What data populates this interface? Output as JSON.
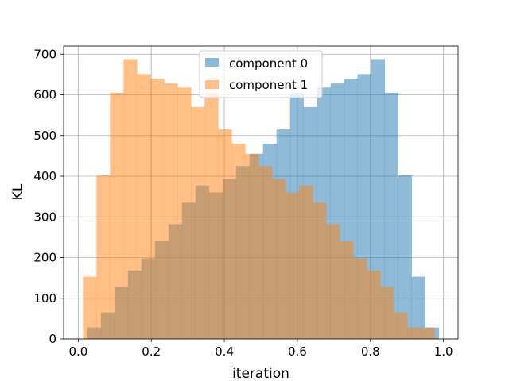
{
  "chart_data": {
    "type": "bar",
    "title": "",
    "xlabel": "iteration",
    "ylabel": "KL",
    "xlim": [
      -0.04,
      1.04
    ],
    "ylim": [
      0,
      720
    ],
    "xticks": [
      0.0,
      0.2,
      0.4,
      0.6,
      0.8,
      1.0
    ],
    "xtick_labels": [
      "0.0",
      "0.2",
      "0.4",
      "0.6",
      "0.8",
      "1.0"
    ],
    "yticks": [
      0,
      100,
      200,
      300,
      400,
      500,
      600,
      700
    ],
    "ytick_labels": [
      "0",
      "100",
      "200",
      "300",
      "400",
      "500",
      "600",
      "700"
    ],
    "grid": true,
    "legend_position": "upper center",
    "series": [
      {
        "name": "component 0",
        "color": "#1f77b4",
        "opacity": 0.5,
        "bins": [
          [
            0.025,
            0.062
          ],
          [
            0.062,
            0.099
          ],
          [
            0.099,
            0.136
          ],
          [
            0.136,
            0.173
          ],
          [
            0.173,
            0.21
          ],
          [
            0.21,
            0.247
          ],
          [
            0.247,
            0.284
          ],
          [
            0.284,
            0.321
          ],
          [
            0.321,
            0.358
          ],
          [
            0.358,
            0.395
          ],
          [
            0.395,
            0.432
          ],
          [
            0.432,
            0.469
          ],
          [
            0.469,
            0.506
          ],
          [
            0.506,
            0.543
          ],
          [
            0.543,
            0.58
          ],
          [
            0.58,
            0.617
          ],
          [
            0.617,
            0.654
          ],
          [
            0.654,
            0.691
          ],
          [
            0.691,
            0.728
          ],
          [
            0.728,
            0.765
          ],
          [
            0.765,
            0.802
          ],
          [
            0.802,
            0.839
          ],
          [
            0.839,
            0.876
          ],
          [
            0.876,
            0.913
          ],
          [
            0.913,
            0.95
          ],
          [
            0.95,
            0.987
          ]
        ],
        "values": [
          28,
          65,
          128,
          168,
          198,
          240,
          282,
          335,
          377,
          360,
          393,
          425,
          455,
          480,
          515,
          605,
          570,
          618,
          628,
          640,
          651,
          688,
          605,
          402,
          153,
          28
        ]
      },
      {
        "name": "component 1",
        "color": "#ff7f0e",
        "opacity": 0.5,
        "bins": [
          [
            0.013,
            0.05
          ],
          [
            0.05,
            0.087
          ],
          [
            0.087,
            0.124
          ],
          [
            0.124,
            0.161
          ],
          [
            0.161,
            0.198
          ],
          [
            0.198,
            0.235
          ],
          [
            0.235,
            0.272
          ],
          [
            0.272,
            0.309
          ],
          [
            0.309,
            0.346
          ],
          [
            0.346,
            0.383
          ],
          [
            0.383,
            0.42
          ],
          [
            0.42,
            0.457
          ],
          [
            0.457,
            0.494
          ],
          [
            0.494,
            0.531
          ],
          [
            0.531,
            0.568
          ],
          [
            0.568,
            0.605
          ],
          [
            0.605,
            0.642
          ],
          [
            0.642,
            0.679
          ],
          [
            0.679,
            0.716
          ],
          [
            0.716,
            0.753
          ],
          [
            0.753,
            0.79
          ],
          [
            0.79,
            0.827
          ],
          [
            0.827,
            0.864
          ],
          [
            0.864,
            0.901
          ],
          [
            0.901,
            0.938
          ],
          [
            0.938,
            0.975
          ]
        ],
        "values": [
          153,
          402,
          605,
          688,
          651,
          640,
          628,
          618,
          570,
          605,
          515,
          480,
          455,
          425,
          393,
          360,
          377,
          335,
          282,
          240,
          198,
          168,
          128,
          65,
          28,
          28
        ]
      }
    ]
  }
}
